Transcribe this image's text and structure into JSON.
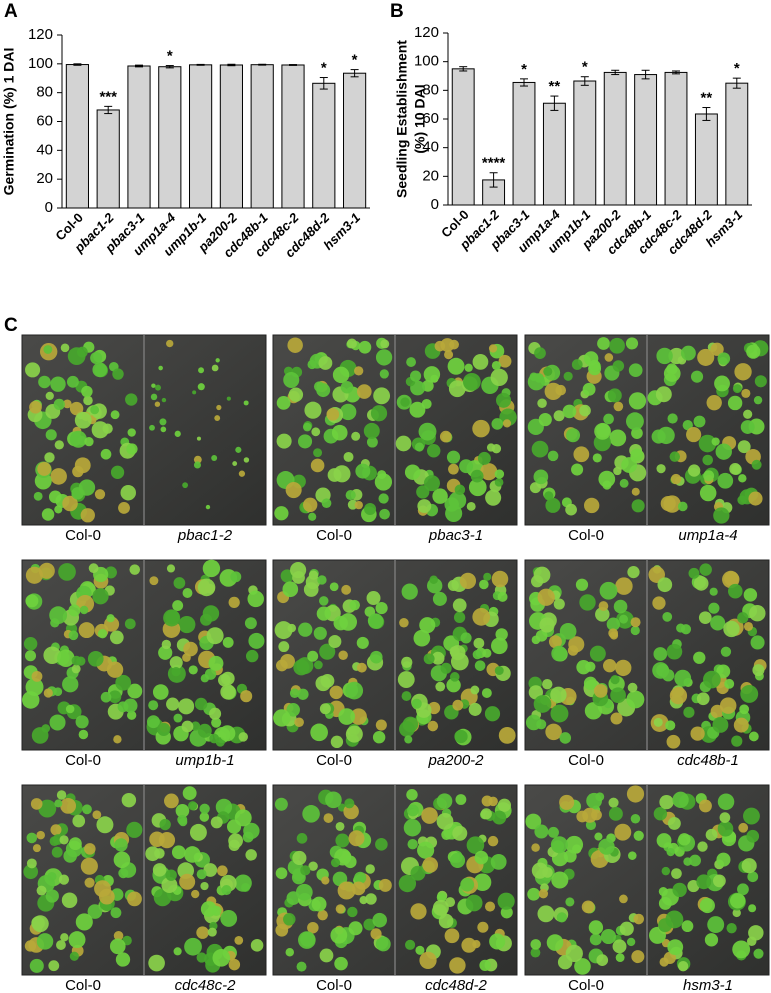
{
  "chart_data": [
    {
      "type": "bar",
      "label": "A",
      "ylabel": [
        "Germination (%) 1 DAI"
      ],
      "categories": [
        "Col-0",
        "pbac1-2",
        "pbac3-1",
        "ump1a-4",
        "ump1b-1",
        "pa200-2",
        "cdc48b-1",
        "cdc48c-2",
        "cdc48d-2",
        "hsm3-1"
      ],
      "values": [
        99.5,
        68,
        98.5,
        98,
        99.3,
        99.2,
        99.4,
        99.2,
        86.5,
        93.5
      ],
      "errors": [
        0.5,
        2.5,
        0.6,
        0.8,
        0.3,
        0.5,
        0.3,
        0.3,
        4,
        2.5
      ],
      "annotations": [
        null,
        "***",
        null,
        "*",
        null,
        null,
        null,
        null,
        "*",
        "*"
      ],
      "color": "#d3d3d3",
      "ylim": [
        0,
        120
      ],
      "yticks": [
        0,
        20,
        40,
        60,
        80,
        100,
        120
      ]
    },
    {
      "type": "bar",
      "label": "B",
      "ylabel": [
        "Seedling Establishment",
        "(%) 10 DAI"
      ],
      "categories": [
        "Col-0",
        "pbac1-2",
        "pbac3-1",
        "ump1a-4",
        "ump1b-1",
        "pa200-2",
        "cdc48b-1",
        "cdc48c-2",
        "cdc48d-2",
        "hsm3-1"
      ],
      "values": [
        95,
        17.5,
        85.5,
        71,
        86.5,
        92.5,
        91,
        92.5,
        63.5,
        85
      ],
      "errors": [
        1.5,
        5,
        2.5,
        5,
        3,
        1.5,
        3,
        1,
        4.5,
        3.5
      ],
      "annotations": [
        null,
        "****",
        "*",
        "**",
        "*",
        null,
        null,
        null,
        "**",
        "*"
      ],
      "color": "#d3d3d3",
      "ylim": [
        0,
        120
      ],
      "yticks": [
        0,
        20,
        40,
        60,
        80,
        100,
        120
      ]
    }
  ],
  "panel_c": {
    "label": "C",
    "photos": [
      {
        "left": "Col-0",
        "right": "pbac1-2"
      },
      {
        "left": "Col-0",
        "right": "pbac3-1"
      },
      {
        "left": "Col-0",
        "right": "ump1a-4"
      },
      {
        "left": "Col-0",
        "right": "ump1b-1"
      },
      {
        "left": "Col-0",
        "right": "pa200-2"
      },
      {
        "left": "Col-0",
        "right": "cdc48b-1"
      },
      {
        "left": "Col-0",
        "right": "cdc48c-2"
      },
      {
        "left": "Col-0",
        "right": "cdc48d-2"
      },
      {
        "left": "Col-0",
        "right": "hsm3-1"
      }
    ]
  }
}
